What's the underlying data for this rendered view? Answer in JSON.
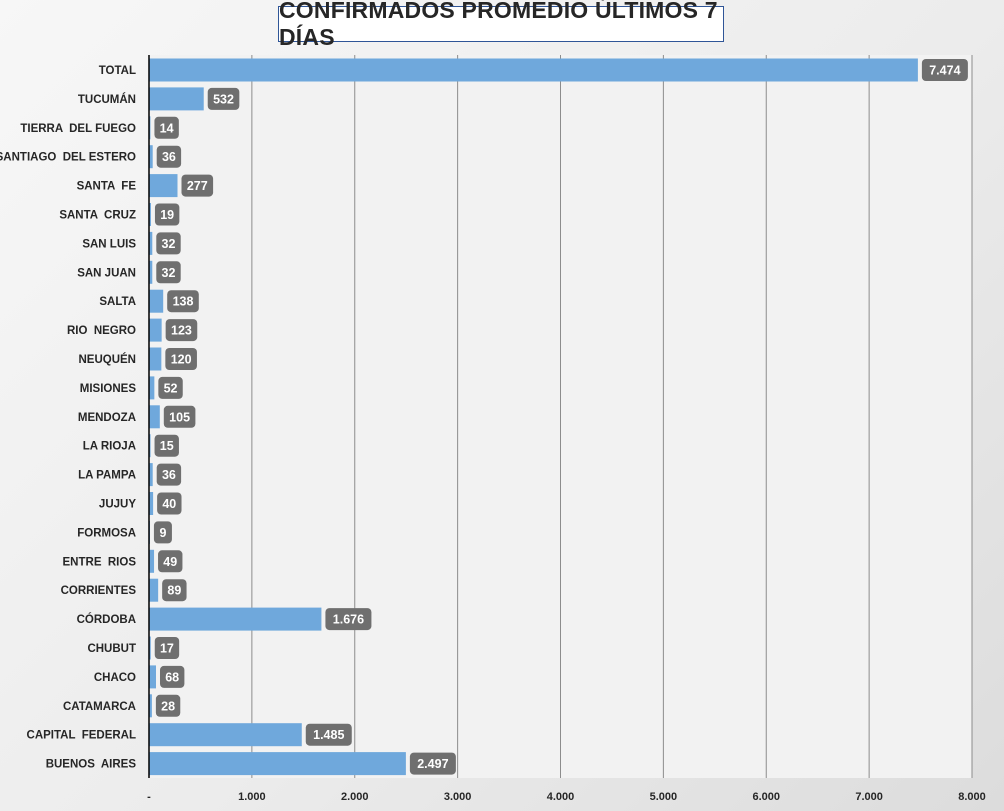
{
  "chart_data": {
    "type": "bar",
    "orientation": "horizontal",
    "title": "CONFIRMADOS PROMEDIO ÚLTIMOS 7 DÍAS",
    "xlabel": "",
    "ylabel": "",
    "xlim": [
      0,
      8000
    ],
    "grid": true,
    "legend": "none",
    "x_ticks": [
      0,
      1000,
      2000,
      3000,
      4000,
      5000,
      6000,
      7000,
      8000
    ],
    "x_tick_labels": [
      "-",
      "1.000",
      "2.000",
      "3.000",
      "4.000",
      "5.000",
      "6.000",
      "7.000",
      "8.000"
    ],
    "categories": [
      "TOTAL",
      "TUCUMÁN",
      "TIERRA  DEL FUEGO",
      "SANTIAGO  DEL ESTERO",
      "SANTA  FE",
      "SANTA  CRUZ",
      "SAN LUIS",
      "SAN JUAN",
      "SALTA",
      "RIO  NEGRO",
      "NEUQUÉN",
      "MISIONES",
      "MENDOZA",
      "LA RIOJA",
      "LA PAMPA",
      "JUJUY",
      "FORMOSA",
      "ENTRE  RIOS",
      "CORRIENTES",
      "CÓRDOBA",
      "CHUBUT",
      "CHACO",
      "CATAMARCA",
      "CAPITAL  FEDERAL",
      "BUENOS  AIRES"
    ],
    "values": [
      7474,
      532,
      14,
      36,
      277,
      19,
      32,
      32,
      138,
      123,
      120,
      52,
      105,
      15,
      36,
      40,
      9,
      49,
      89,
      1676,
      17,
      68,
      28,
      1485,
      2497
    ],
    "value_labels": [
      "7.474",
      "532",
      "14",
      "36",
      "277",
      "19",
      "32",
      "32",
      "138",
      "123",
      "120",
      "52",
      "105",
      "15",
      "36",
      "40",
      "9",
      "49",
      "89",
      "1.676",
      "17",
      "68",
      "28",
      "1.485",
      "2.497"
    ]
  },
  "colors": {
    "bar": "#6fa8dc",
    "label_bg": "#6f6f6f",
    "label_text": "#ffffff",
    "grid": "#8c8c8c",
    "axis": "#000000",
    "text": "#262626",
    "plot_bg": "#f2f2f2",
    "title_border": "#2f5597"
  }
}
